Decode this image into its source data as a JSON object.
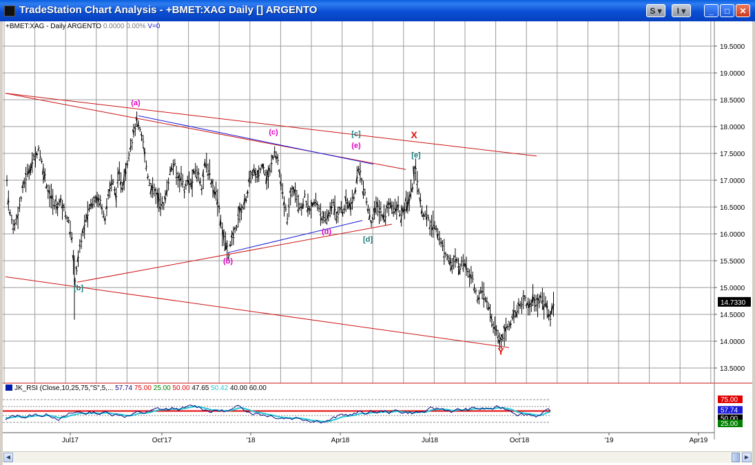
{
  "window": {
    "title": "TradeStation Chart Analysis - +BMET:XAG Daily [] ARGENTO",
    "buttons": {
      "s_label": "S",
      "i_label": "I",
      "min": "_",
      "max": "□",
      "close": "✕"
    }
  },
  "header": {
    "symbol": "+BMET:XAG - Daily",
    "name": "ARGENTO",
    "change": "0.0000",
    "pct": "0.00%",
    "volume": "V=0"
  },
  "rsi_header": {
    "study": "JK_RSI (Close,10,25,75,\"S\",5,...",
    "v1": "57.74",
    "v2": "75.00",
    "v3": "25.00",
    "v4": "50.00",
    "v5": "47.65",
    "v6": "50.42",
    "v7": "40.00",
    "v8": "60.00"
  },
  "colors": {
    "price": "#000000",
    "grid": "#9a9a9a",
    "trendline_red": "#cc1111",
    "trendline_blue": "#1a1ad8",
    "wave_magenta": "#e000c0",
    "wave_teal": "#1a7a7a",
    "rsi_line": "#0a0a80",
    "rsi_signal": "#20c8d8",
    "rsi_level_red": "#e00000"
  },
  "chart_data": {
    "type": "ohlc",
    "symbol": "+BMET:XAG",
    "interval": "Daily",
    "last_price": "14.7330",
    "y_ticks": [
      "19.5000",
      "19.0000",
      "18.5000",
      "18.0000",
      "17.5000",
      "17.0000",
      "16.5000",
      "16.0000",
      "15.5000",
      "15.0000",
      "14.5000",
      "14.0000",
      "13.5000"
    ],
    "x_ticks": [
      "Jul17",
      "Oct'17",
      "'18",
      "Apr18",
      "Jul18",
      "Oct'18",
      "'19",
      "Apr19"
    ],
    "close_path": [
      [
        0,
        17.3
      ],
      [
        6,
        16.4
      ],
      [
        12,
        16.1
      ],
      [
        20,
        16.5
      ],
      [
        28,
        17.0
      ],
      [
        38,
        17.3
      ],
      [
        48,
        17.6
      ],
      [
        55,
        17.2
      ],
      [
        62,
        16.8
      ],
      [
        72,
        16.5
      ],
      [
        80,
        16.6
      ],
      [
        90,
        16.3
      ],
      [
        97,
        15.9
      ],
      [
        100,
        15.1
      ],
      [
        104,
        15.4
      ],
      [
        110,
        15.9
      ],
      [
        116,
        16.2
      ],
      [
        122,
        16.5
      ],
      [
        130,
        16.7
      ],
      [
        138,
        16.6
      ],
      [
        145,
        16.3
      ],
      [
        150,
        16.8
      ],
      [
        155,
        17.0
      ],
      [
        160,
        16.7
      ],
      [
        165,
        17.1
      ],
      [
        170,
        16.9
      ],
      [
        175,
        17.2
      ],
      [
        180,
        17.6
      ],
      [
        185,
        17.8
      ],
      [
        190,
        18.1
      ],
      [
        195,
        17.9
      ],
      [
        200,
        17.7
      ],
      [
        205,
        17.2
      ],
      [
        210,
        16.9
      ],
      [
        215,
        16.8
      ],
      [
        220,
        16.7
      ],
      [
        225,
        16.6
      ],
      [
        230,
        16.5
      ],
      [
        235,
        16.9
      ],
      [
        240,
        17.2
      ],
      [
        245,
        17.3
      ],
      [
        250,
        17.0
      ],
      [
        255,
        17.1
      ],
      [
        260,
        16.8
      ],
      [
        265,
        17.0
      ],
      [
        270,
        16.9
      ],
      [
        275,
        17.2
      ],
      [
        280,
        17.1
      ],
      [
        285,
        16.9
      ],
      [
        290,
        17.3
      ],
      [
        295,
        17.2
      ],
      [
        300,
        16.9
      ],
      [
        305,
        16.8
      ],
      [
        310,
        16.5
      ],
      [
        315,
        16.0
      ],
      [
        320,
        15.8
      ],
      [
        324,
        15.65
      ],
      [
        328,
        15.85
      ],
      [
        332,
        16.0
      ],
      [
        336,
        16.2
      ],
      [
        340,
        16.4
      ],
      [
        345,
        16.5
      ],
      [
        350,
        16.7
      ],
      [
        355,
        17.0
      ],
      [
        360,
        17.2
      ],
      [
        365,
        17.0
      ],
      [
        370,
        17.2
      ],
      [
        375,
        17.3
      ],
      [
        380,
        17.0
      ],
      [
        385,
        17.2
      ],
      [
        390,
        17.6
      ],
      [
        395,
        17.4
      ],
      [
        400,
        16.9
      ],
      [
        405,
        16.5
      ],
      [
        410,
        16.3
      ],
      [
        415,
        16.8
      ],
      [
        420,
        16.9
      ],
      [
        425,
        16.6
      ],
      [
        430,
        16.5
      ],
      [
        435,
        16.7
      ],
      [
        440,
        16.4
      ],
      [
        445,
        16.5
      ],
      [
        450,
        16.6
      ],
      [
        455,
        16.5
      ],
      [
        460,
        16.3
      ],
      [
        465,
        16.2
      ],
      [
        470,
        16.4
      ],
      [
        475,
        16.6
      ],
      [
        480,
        16.3
      ],
      [
        485,
        16.5
      ],
      [
        490,
        16.4
      ],
      [
        495,
        16.6
      ],
      [
        500,
        16.5
      ],
      [
        505,
        16.6
      ],
      [
        510,
        17.0
      ],
      [
        514,
        17.3
      ],
      [
        518,
        16.9
      ],
      [
        522,
        16.7
      ],
      [
        526,
        16.5
      ],
      [
        530,
        16.2
      ],
      [
        535,
        16.4
      ],
      [
        540,
        16.5
      ],
      [
        545,
        16.4
      ],
      [
        550,
        16.3
      ],
      [
        555,
        16.5
      ],
      [
        560,
        16.6
      ],
      [
        565,
        16.4
      ],
      [
        570,
        16.5
      ],
      [
        575,
        16.3
      ],
      [
        580,
        16.5
      ],
      [
        585,
        16.6
      ],
      [
        590,
        16.8
      ],
      [
        594,
        17.25
      ],
      [
        598,
        17.0
      ],
      [
        602,
        16.6
      ],
      [
        606,
        16.4
      ],
      [
        612,
        16.3
      ],
      [
        618,
        16.1
      ],
      [
        624,
        16.2
      ],
      [
        630,
        15.9
      ],
      [
        636,
        15.7
      ],
      [
        642,
        15.6
      ],
      [
        648,
        15.4
      ],
      [
        654,
        15.5
      ],
      [
        660,
        15.4
      ],
      [
        666,
        15.5
      ],
      [
        672,
        15.3
      ],
      [
        678,
        15.2
      ],
      [
        684,
        14.8
      ],
      [
        690,
        14.9
      ],
      [
        696,
        14.8
      ],
      [
        702,
        14.6
      ],
      [
        708,
        14.3
      ],
      [
        714,
        14.1
      ],
      [
        718,
        14.0
      ],
      [
        722,
        14.1
      ],
      [
        726,
        14.2
      ],
      [
        730,
        14.3
      ],
      [
        736,
        14.4
      ],
      [
        742,
        14.6
      ],
      [
        748,
        14.7
      ],
      [
        754,
        14.8
      ],
      [
        760,
        14.6
      ],
      [
        766,
        14.8
      ],
      [
        772,
        14.7
      ],
      [
        778,
        14.8
      ],
      [
        784,
        14.7
      ],
      [
        790,
        14.4
      ],
      [
        796,
        14.73
      ]
    ],
    "wave_labels": [
      {
        "text": "(a)",
        "color": "magenta",
        "x": 193,
        "price": 18.4
      },
      {
        "text": "(b)",
        "color": "magenta",
        "x": 327,
        "price": 15.45
      },
      {
        "text": "(c)",
        "color": "magenta",
        "x": 393,
        "price": 17.85
      },
      {
        "text": "(d)",
        "color": "magenta",
        "x": 470,
        "price": 16.0
      },
      {
        "text": "(e)",
        "color": "magenta",
        "x": 513,
        "price": 17.6
      },
      {
        "text": "[b]",
        "color": "teal",
        "x": 110,
        "price": 14.95
      },
      {
        "text": "[c]",
        "color": "teal",
        "x": 513,
        "price": 17.82
      },
      {
        "text": "[d]",
        "color": "teal",
        "x": 530,
        "price": 15.85
      },
      {
        "text": "[e]",
        "color": "teal",
        "x": 600,
        "price": 17.42
      },
      {
        "text": "X",
        "color": "red",
        "x": 597,
        "price": 17.78
      },
      {
        "text": "Y",
        "color": "red",
        "x": 723,
        "price": 13.75
      }
    ],
    "trendlines": [
      {
        "color": "red",
        "from": [
          4,
          18.62
        ],
        "to": [
          585,
          17.2
        ]
      },
      {
        "color": "red",
        "from": [
          4,
          18.62
        ],
        "to": [
          775,
          17.45
        ]
      },
      {
        "color": "red",
        "from": [
          108,
          15.1
        ],
        "to": [
          565,
          16.18
        ]
      },
      {
        "color": "red",
        "from": [
          4,
          15.2
        ],
        "to": [
          735,
          13.88
        ]
      },
      {
        "color": "blue",
        "from": [
          197,
          18.2
        ],
        "to": [
          538,
          17.3
        ]
      },
      {
        "color": "blue",
        "from": [
          327,
          15.65
        ],
        "to": [
          522,
          16.25
        ]
      }
    ],
    "rsi": {
      "levels": [
        "75.00",
        "57.74",
        "50.00",
        "25.00"
      ]
    }
  }
}
